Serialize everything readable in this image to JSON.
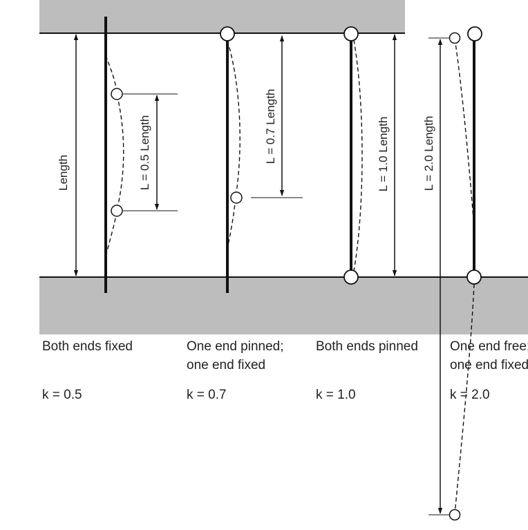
{
  "colors": {
    "ground": "#bdbdbd",
    "ink": "#111111",
    "text": "#222222"
  },
  "cases": [
    {
      "name": "Both ends fixed",
      "name_line2": "",
      "k": "k = 0.5",
      "effective_length_label": "L = 0.5 Length"
    },
    {
      "name": "One end pinned;",
      "name_line2": "one end fixed",
      "k": "k = 0.7",
      "effective_length_label": "L = 0.7 Length"
    },
    {
      "name": "Both ends pinned",
      "name_line2": "",
      "k": "k = 1.0",
      "effective_length_label": "L = 1.0 Length"
    },
    {
      "name": "One end free;",
      "name_line2": "one end fixed",
      "k": "k = 2.0",
      "effective_length_label": "L = 2.0 Length"
    }
  ],
  "length_label": "Length"
}
